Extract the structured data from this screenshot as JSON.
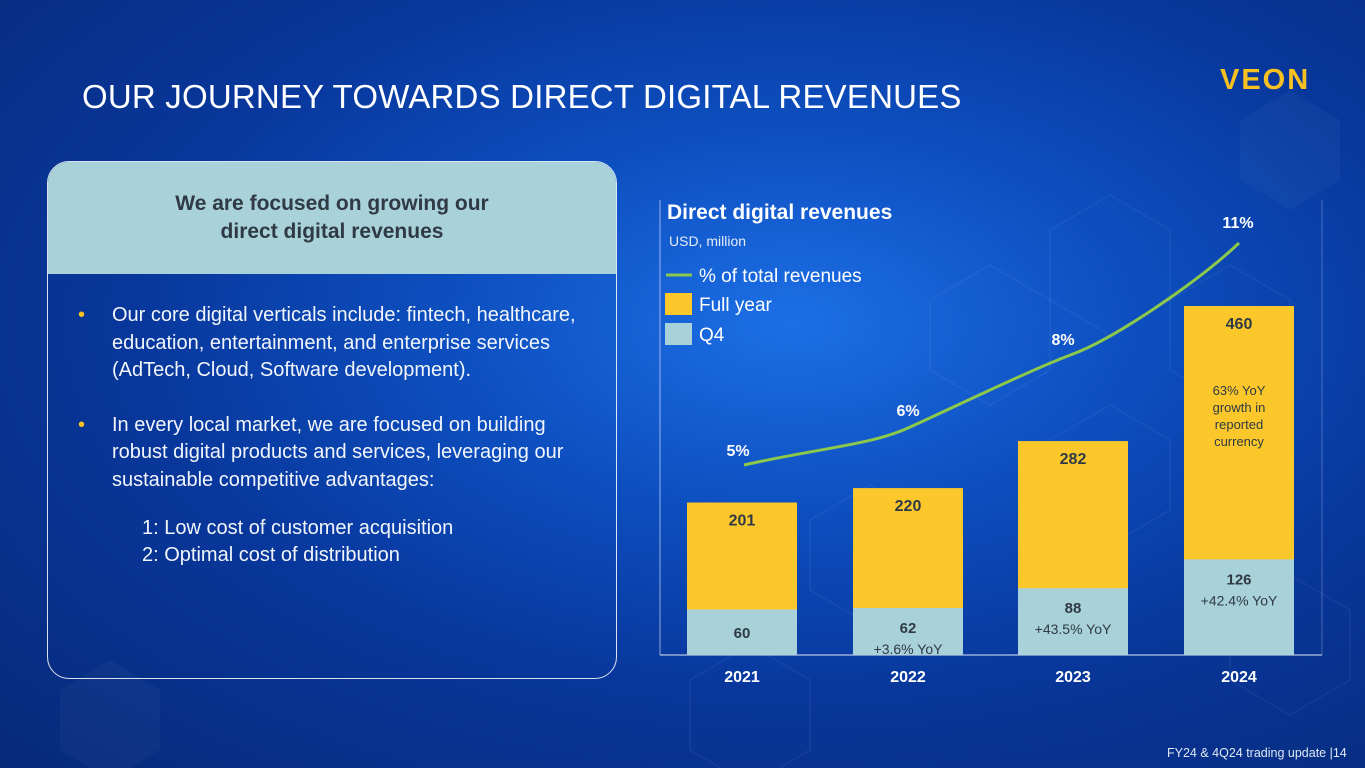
{
  "title": "OUR JOURNEY TOWARDS DIRECT DIGITAL REVENUES",
  "logo": "VEON",
  "card": {
    "heading_line1": "We are focused on growing our",
    "heading_line2": "direct digital revenues",
    "bullets": [
      "Our core digital verticals include: fintech, healthcare, education, entertainment, and enterprise services (AdTech, Cloud, Software development).",
      "In every local market, we are focused on building robust digital products and services, leveraging our sustainable competitive advantages:"
    ],
    "advantages": [
      "1: Low cost of customer acquisition",
      "2: Optimal cost of distribution"
    ]
  },
  "footer": "FY24 & 4Q24 trading update |14",
  "colors": {
    "full_year": "#fbc72b",
    "q4": "#a8d1da",
    "line": "#8cc84b",
    "logo": "#f7c21f"
  },
  "chart_data": {
    "type": "bar",
    "title": "Direct digital revenues",
    "subtitle": "USD, million",
    "categories": [
      "2021",
      "2022",
      "2023",
      "2024"
    ],
    "series": [
      {
        "name": "Full year",
        "values": [
          201,
          220,
          282,
          460
        ]
      },
      {
        "name": "Q4",
        "values": [
          60,
          62,
          88,
          126
        ]
      },
      {
        "name": "% of total revenues",
        "type": "line",
        "values": [
          5,
          6,
          8,
          11
        ]
      }
    ],
    "q4_yoy_labels": [
      "",
      "+3.6% YoY",
      "+43.5% YoY",
      "+42.4% YoY"
    ],
    "pct_labels": [
      "5%",
      "6%",
      "8%",
      "11%"
    ],
    "annotation": "63% YoY growth in reported currency",
    "legend": [
      "% of total revenues",
      "Full year",
      "Q4"
    ],
    "ylim": [
      0,
      460
    ],
    "legend_position": "top-left"
  }
}
